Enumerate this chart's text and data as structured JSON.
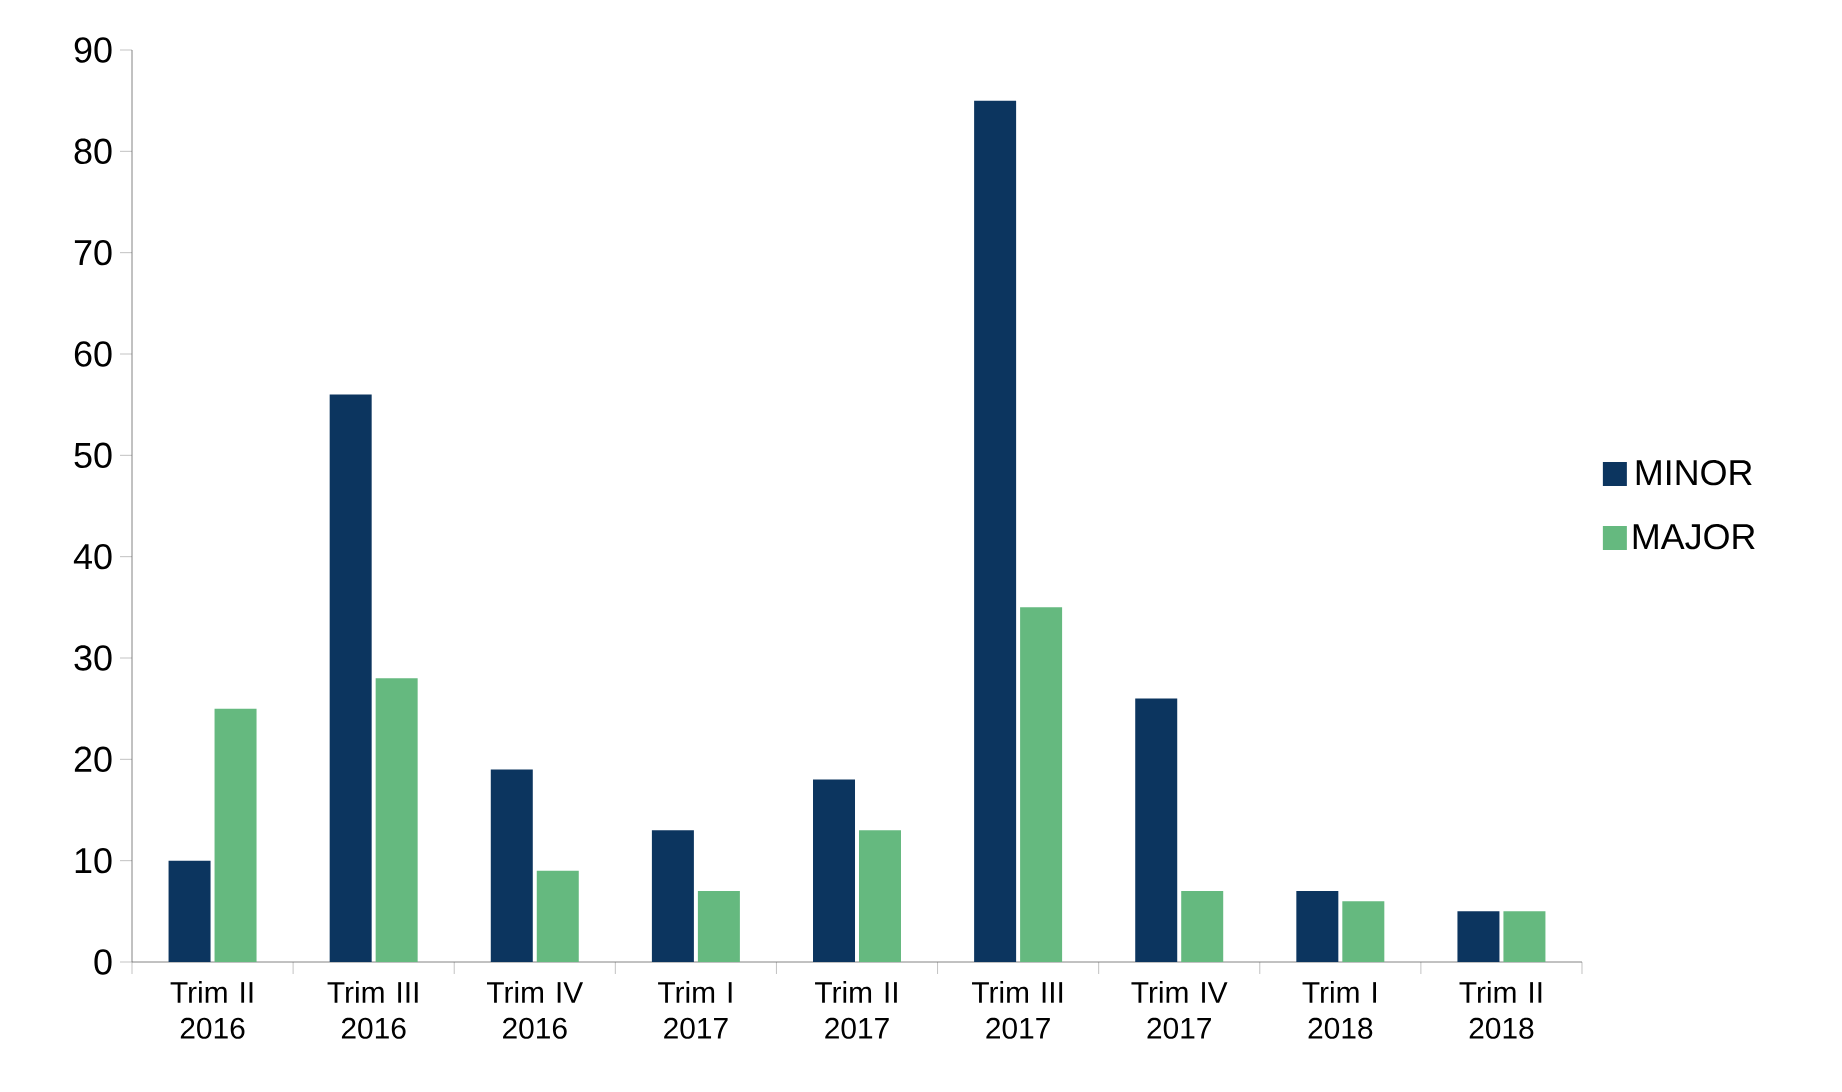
{
  "chart_data": {
    "type": "bar",
    "categories": [
      "Trim II 2016",
      "Trim III 2016",
      "Trim IV 2016",
      "Trim I 2017",
      "Trim II 2017",
      "Trim III 2017",
      "Trim IV 2017",
      "Trim I 2018",
      "Trim II 2018"
    ],
    "series": [
      {
        "name": "MINOR",
        "color": "#0c355f",
        "values": [
          10,
          56,
          19,
          13,
          18,
          85,
          26,
          7,
          5
        ]
      },
      {
        "name": "MAJOR",
        "color": "#65b97f",
        "values": [
          25,
          28,
          9,
          7,
          13,
          35,
          7,
          6,
          5
        ]
      }
    ],
    "ylim": [
      0,
      90
    ],
    "yticks": [
      0,
      10,
      20,
      30,
      40,
      50,
      60,
      70,
      80,
      90
    ],
    "grid": false,
    "legend": "right"
  }
}
